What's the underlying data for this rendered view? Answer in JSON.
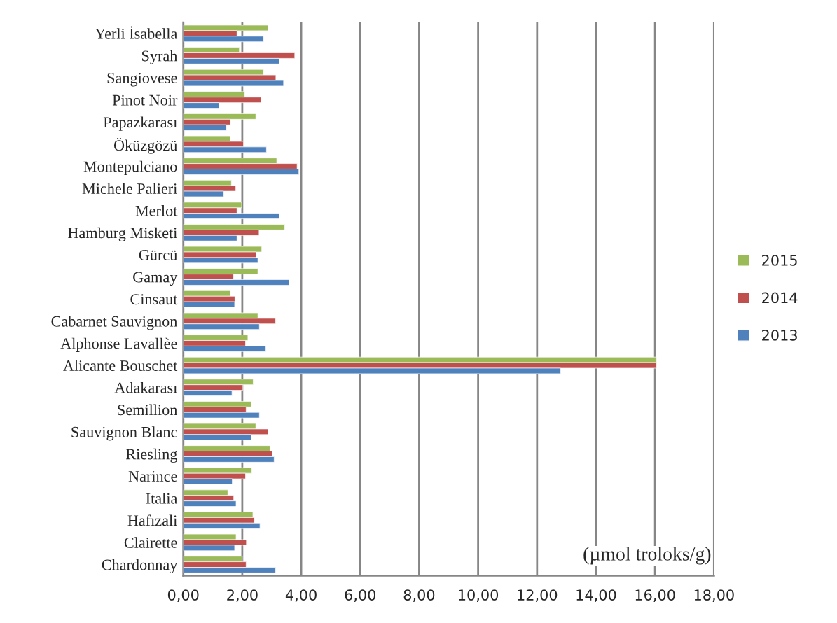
{
  "chart_data": {
    "type": "bar",
    "orientation": "horizontal",
    "categories": [
      "Yerli İsabella",
      "Syrah",
      "Sangiovese",
      "Pinot Noir",
      "Papazkarası",
      "Öküzgözü",
      "Montepulciano",
      "Michele Palieri",
      "Merlot",
      "Hamburg Misketi",
      "Gürcü",
      "Gamay",
      "Cinsaut",
      "Cabarnet Sauvignon",
      "Alphonse Lavallèe",
      "Alicante Bouschet",
      "Adakarası",
      "Semillion",
      "Sauvignon Blanc",
      "Riesling",
      "Narince",
      "Italia",
      "Hafızali",
      "Clairette",
      "Chardonnay"
    ],
    "series": [
      {
        "name": "2015",
        "color": "#9bbb59",
        "values": [
          2.88,
          1.9,
          2.72,
          2.08,
          2.46,
          1.59,
          3.17,
          1.63,
          1.98,
          3.44,
          2.66,
          2.53,
          1.6,
          2.53,
          2.19,
          16.05,
          2.37,
          2.3,
          2.46,
          2.94,
          2.32,
          1.51,
          2.36,
          1.79,
          2.0
        ]
      },
      {
        "name": "2014",
        "color": "#c0504d",
        "values": [
          1.82,
          3.78,
          3.14,
          2.64,
          1.6,
          2.04,
          3.86,
          1.78,
          1.82,
          2.57,
          2.47,
          1.7,
          1.75,
          3.13,
          2.11,
          16.05,
          2.02,
          2.13,
          2.88,
          3.02,
          2.11,
          1.71,
          2.41,
          2.14,
          2.13
        ]
      },
      {
        "name": "2013",
        "color": "#4f81bd",
        "values": [
          2.72,
          3.26,
          3.4,
          1.21,
          1.46,
          2.82,
          3.92,
          1.37,
          3.26,
          1.82,
          2.53,
          3.59,
          1.74,
          2.58,
          2.8,
          12.8,
          1.65,
          2.58,
          2.3,
          3.08,
          1.66,
          1.79,
          2.6,
          1.74,
          3.13
        ]
      }
    ],
    "xlim": [
      0,
      18
    ],
    "xticks": [
      {
        "value": 0,
        "label": "0,00"
      },
      {
        "value": 2,
        "label": "2,00"
      },
      {
        "value": 4,
        "label": "4,00"
      },
      {
        "value": 6,
        "label": "6,00"
      },
      {
        "value": 8,
        "label": "8,00"
      },
      {
        "value": 10,
        "label": "10,00"
      },
      {
        "value": 12,
        "label": "12,00"
      },
      {
        "value": 14,
        "label": "14,00"
      },
      {
        "value": 16,
        "label": "16,00"
      },
      {
        "value": 18,
        "label": "18,00"
      }
    ],
    "grid": "x",
    "legend": "right",
    "annotations": [
      "(µmol troloks/g)"
    ]
  }
}
